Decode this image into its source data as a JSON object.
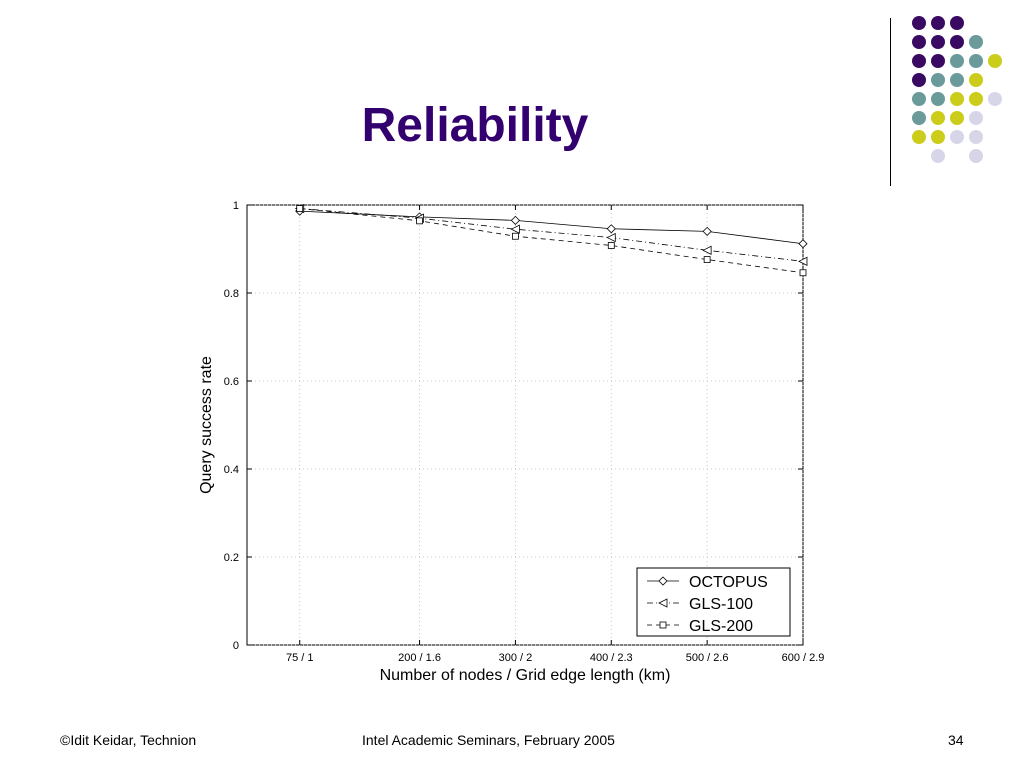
{
  "slide": {
    "title": "Reliability",
    "footer_left": "©Idit Keidar, Technion",
    "footer_center": "Intel Academic Seminars, February 2005",
    "page_number": "34"
  },
  "colors": {
    "title": "#33006f",
    "dot_purple": "#3a0a63",
    "dot_teal": "#6a9a9a",
    "dot_yellow": "#cccc1a",
    "dot_lavender": "#d6d6e8"
  },
  "decoration": {
    "dot_rows": [
      [
        "purple",
        "purple",
        "purple",
        "",
        ""
      ],
      [
        "purple",
        "purple",
        "purple",
        "teal",
        ""
      ],
      [
        "purple",
        "purple",
        "teal",
        "teal",
        "yellow"
      ],
      [
        "purple",
        "teal",
        "teal",
        "yellow",
        ""
      ],
      [
        "teal",
        "teal",
        "yellow",
        "yellow",
        "lavender"
      ],
      [
        "teal",
        "yellow",
        "yellow",
        "lavender",
        ""
      ],
      [
        "yellow",
        "yellow",
        "lavender",
        "lavender",
        ""
      ],
      [
        "",
        "lavender",
        "",
        "lavender",
        ""
      ]
    ]
  },
  "chart_data": {
    "type": "line",
    "xlabel": "Number of nodes / Grid edge length (km)",
    "ylabel": "Query success rate",
    "x": [
      75,
      200,
      300,
      400,
      500,
      600
    ],
    "x_tick_labels": [
      "75 / 1",
      "200 / 1.6",
      "300 / 2",
      "400 / 2.3",
      "500 / 2.6",
      "600 / 2.9"
    ],
    "xlim": [
      20,
      600
    ],
    "ylim": [
      0,
      1
    ],
    "y_ticks": [
      0,
      0.2,
      0.4,
      0.6,
      0.8,
      1
    ],
    "y_tick_labels": [
      "0",
      "0.2",
      "0.4",
      "0.6",
      "0.8",
      "1"
    ],
    "grid": true,
    "legend_position": "bottom-right",
    "series": [
      {
        "name": "OCTOPUS",
        "marker": "diamond",
        "line": "solid",
        "values": [
          0.986,
          0.973,
          0.965,
          0.946,
          0.94,
          0.912
        ]
      },
      {
        "name": "GLS-100",
        "marker": "triangle-left",
        "line": "dashdot",
        "values": [
          0.992,
          0.97,
          0.945,
          0.926,
          0.897,
          0.872
        ]
      },
      {
        "name": "GLS-200",
        "marker": "square",
        "line": "dashed",
        "values": [
          0.992,
          0.964,
          0.929,
          0.908,
          0.876,
          0.846
        ]
      }
    ]
  }
}
